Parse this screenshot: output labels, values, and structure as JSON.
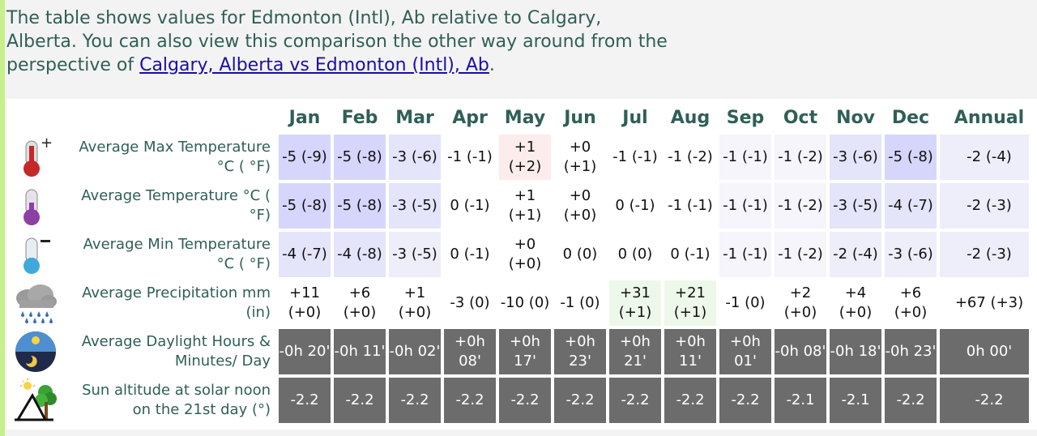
{
  "intro": {
    "text_before": "The table shows values for Edmonton (Intl), Ab relative to Calgary, Alberta. You can also view this comparison the other way around from the perspective of ",
    "link_text": "Calgary, Alberta vs Edmonton (Intl), Ab",
    "text_after": "."
  },
  "months": [
    "Jan",
    "Feb",
    "Mar",
    "Apr",
    "May",
    "Jun",
    "Jul",
    "Aug",
    "Sep",
    "Oct",
    "Nov",
    "Dec"
  ],
  "annual_label": "Annual",
  "rows": [
    {
      "label": "Average Max Temperature °C ( °F)",
      "icon": "thermometer-hot-icon",
      "values": [
        "-5 (-9)",
        "-5 (-8)",
        "-3 (-6)",
        "-1 (-1)",
        "+1 (+2)",
        "+0 (+1)",
        "-1 (-1)",
        "-1 (-2)",
        "-1 (-1)",
        "-1 (-2)",
        "-3 (-6)",
        "-5 (-8)"
      ],
      "annual": "-2 (-4)"
    },
    {
      "label": "Average Temperature °C ( °F)",
      "icon": "thermometer-average-icon",
      "values": [
        "-5 (-8)",
        "-5 (-8)",
        "-3 (-5)",
        "0 (-1)",
        "+1 (+1)",
        "+0 (+0)",
        "0 (-1)",
        "-1 (-1)",
        "-1 (-1)",
        "-1 (-2)",
        "-3 (-5)",
        "-4 (-7)"
      ],
      "annual": "-2 (-3)"
    },
    {
      "label": "Average Min Temperature °C ( °F)",
      "icon": "thermometer-cold-icon",
      "values": [
        "-4 (-7)",
        "-4 (-8)",
        "-3 (-5)",
        "0 (-1)",
        "+0 (+0)",
        "0 (0)",
        "0 (0)",
        "0 (-1)",
        "-1 (-1)",
        "-1 (-2)",
        "-2 (-4)",
        "-3 (-6)"
      ],
      "annual": "-2 (-3)"
    },
    {
      "label": "Average Precipitation mm (in)",
      "icon": "rain-cloud-icon",
      "values": [
        "+11 (+0)",
        "+6 (+0)",
        "+1 (+0)",
        "-3 (0)",
        "-10 (0)",
        "-1 (0)",
        "+31 (+1)",
        "+21 (+1)",
        "-1 (0)",
        "+2 (+0)",
        "+4 (+0)",
        "+6 (+0)"
      ],
      "annual": "+67 (+3)"
    },
    {
      "label": "Average Daylight Hours & Minutes/ Day",
      "icon": "sun-moon-icon",
      "values": [
        "-0h 20'",
        "-0h 11'",
        "-0h 02'",
        "+0h 08'",
        "+0h 17'",
        "+0h 23'",
        "+0h 21'",
        "+0h 11'",
        "+0h 01'",
        "-0h 08'",
        "-0h 18'",
        "-0h 23'"
      ],
      "annual": "0h 00'"
    },
    {
      "label": "Sun altitude at solar noon on the 21st day (°)",
      "icon": "sun-altitude-icon",
      "values": [
        "-2.2",
        "-2.2",
        "-2.2",
        "-2.2",
        "-2.2",
        "-2.2",
        "-2.2",
        "-2.2",
        "-2.2",
        "-2.1",
        "-2.1",
        "-2.2"
      ],
      "annual": "-2.2"
    }
  ],
  "colors": {
    "heading_text": "#2f5f57",
    "link": "#1a0dab",
    "cold_strong": "#d6d6fc",
    "warm_light": "#fcecec",
    "wet_light": "#eef8ea",
    "daylight_bg": "#6c6c6c"
  }
}
